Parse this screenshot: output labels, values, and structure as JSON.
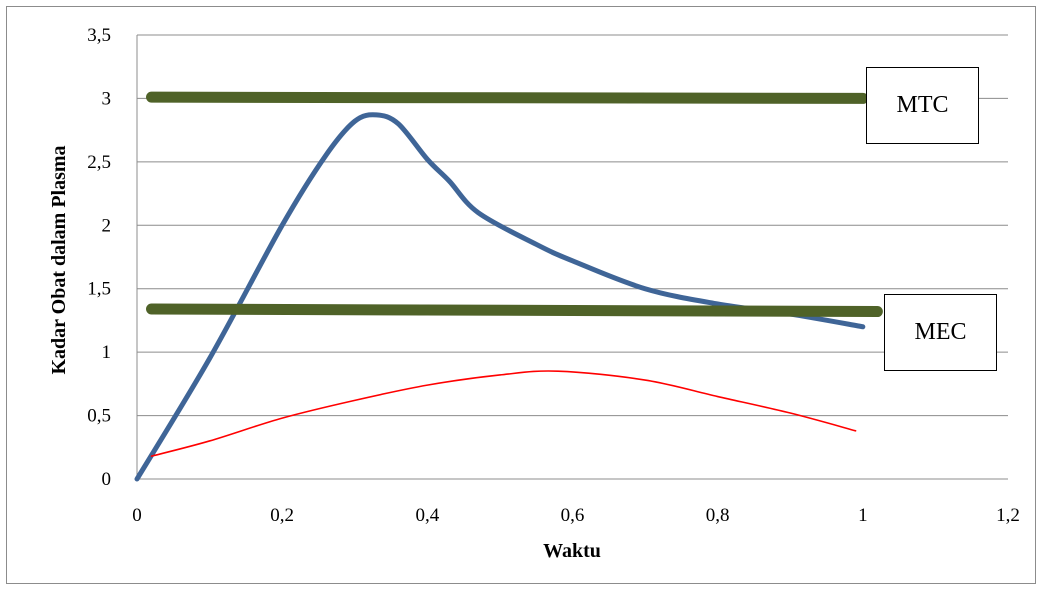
{
  "chart_data": {
    "type": "line",
    "title": "",
    "xlabel": "Waktu",
    "ylabel": "Kadar Obat dalam Plasma",
    "xlim": [
      0,
      1.2
    ],
    "ylim": [
      0,
      3.5
    ],
    "x_ticks": [
      "0",
      "0,2",
      "0,4",
      "0,6",
      "0,8",
      "1",
      "1,2"
    ],
    "y_ticks": [
      "0",
      "0,5",
      "1",
      "1,5",
      "2",
      "2,5",
      "3",
      "3,5"
    ],
    "grid": "horizontal",
    "colors": {
      "main": "#3f6597",
      "limit": "#4f6228",
      "low": "#ff0000",
      "grid": "#8c8c8c"
    },
    "series": [
      {
        "points": [
          [
            0,
            0
          ],
          [
            0.1,
            0.95
          ],
          [
            0.2,
            2.0
          ],
          [
            0.26,
            2.55
          ],
          [
            0.3,
            2.82
          ],
          [
            0.33,
            2.87
          ],
          [
            0.36,
            2.8
          ],
          [
            0.4,
            2.52
          ],
          [
            0.43,
            2.35
          ],
          [
            0.47,
            2.1
          ],
          [
            0.55,
            1.85
          ],
          [
            0.6,
            1.72
          ],
          [
            0.7,
            1.5
          ],
          [
            0.8,
            1.38
          ],
          [
            0.9,
            1.3
          ],
          [
            1.0,
            1.2
          ]
        ]
      },
      {
        "points": [
          [
            0.02,
            0.18
          ],
          [
            0.1,
            0.3
          ],
          [
            0.2,
            0.48
          ],
          [
            0.3,
            0.62
          ],
          [
            0.4,
            0.74
          ],
          [
            0.5,
            0.82
          ],
          [
            0.58,
            0.85
          ],
          [
            0.7,
            0.78
          ],
          [
            0.8,
            0.65
          ],
          [
            0.9,
            0.52
          ],
          [
            0.99,
            0.38
          ]
        ]
      },
      {
        "points": [
          [
            0.02,
            3.01
          ],
          [
            1.0,
            3.0
          ]
        ]
      },
      {
        "points": [
          [
            0.02,
            1.34
          ],
          [
            1.02,
            1.32
          ]
        ]
      }
    ],
    "annotations": [
      {
        "text": "MTC"
      },
      {
        "text": "MEC"
      }
    ]
  }
}
